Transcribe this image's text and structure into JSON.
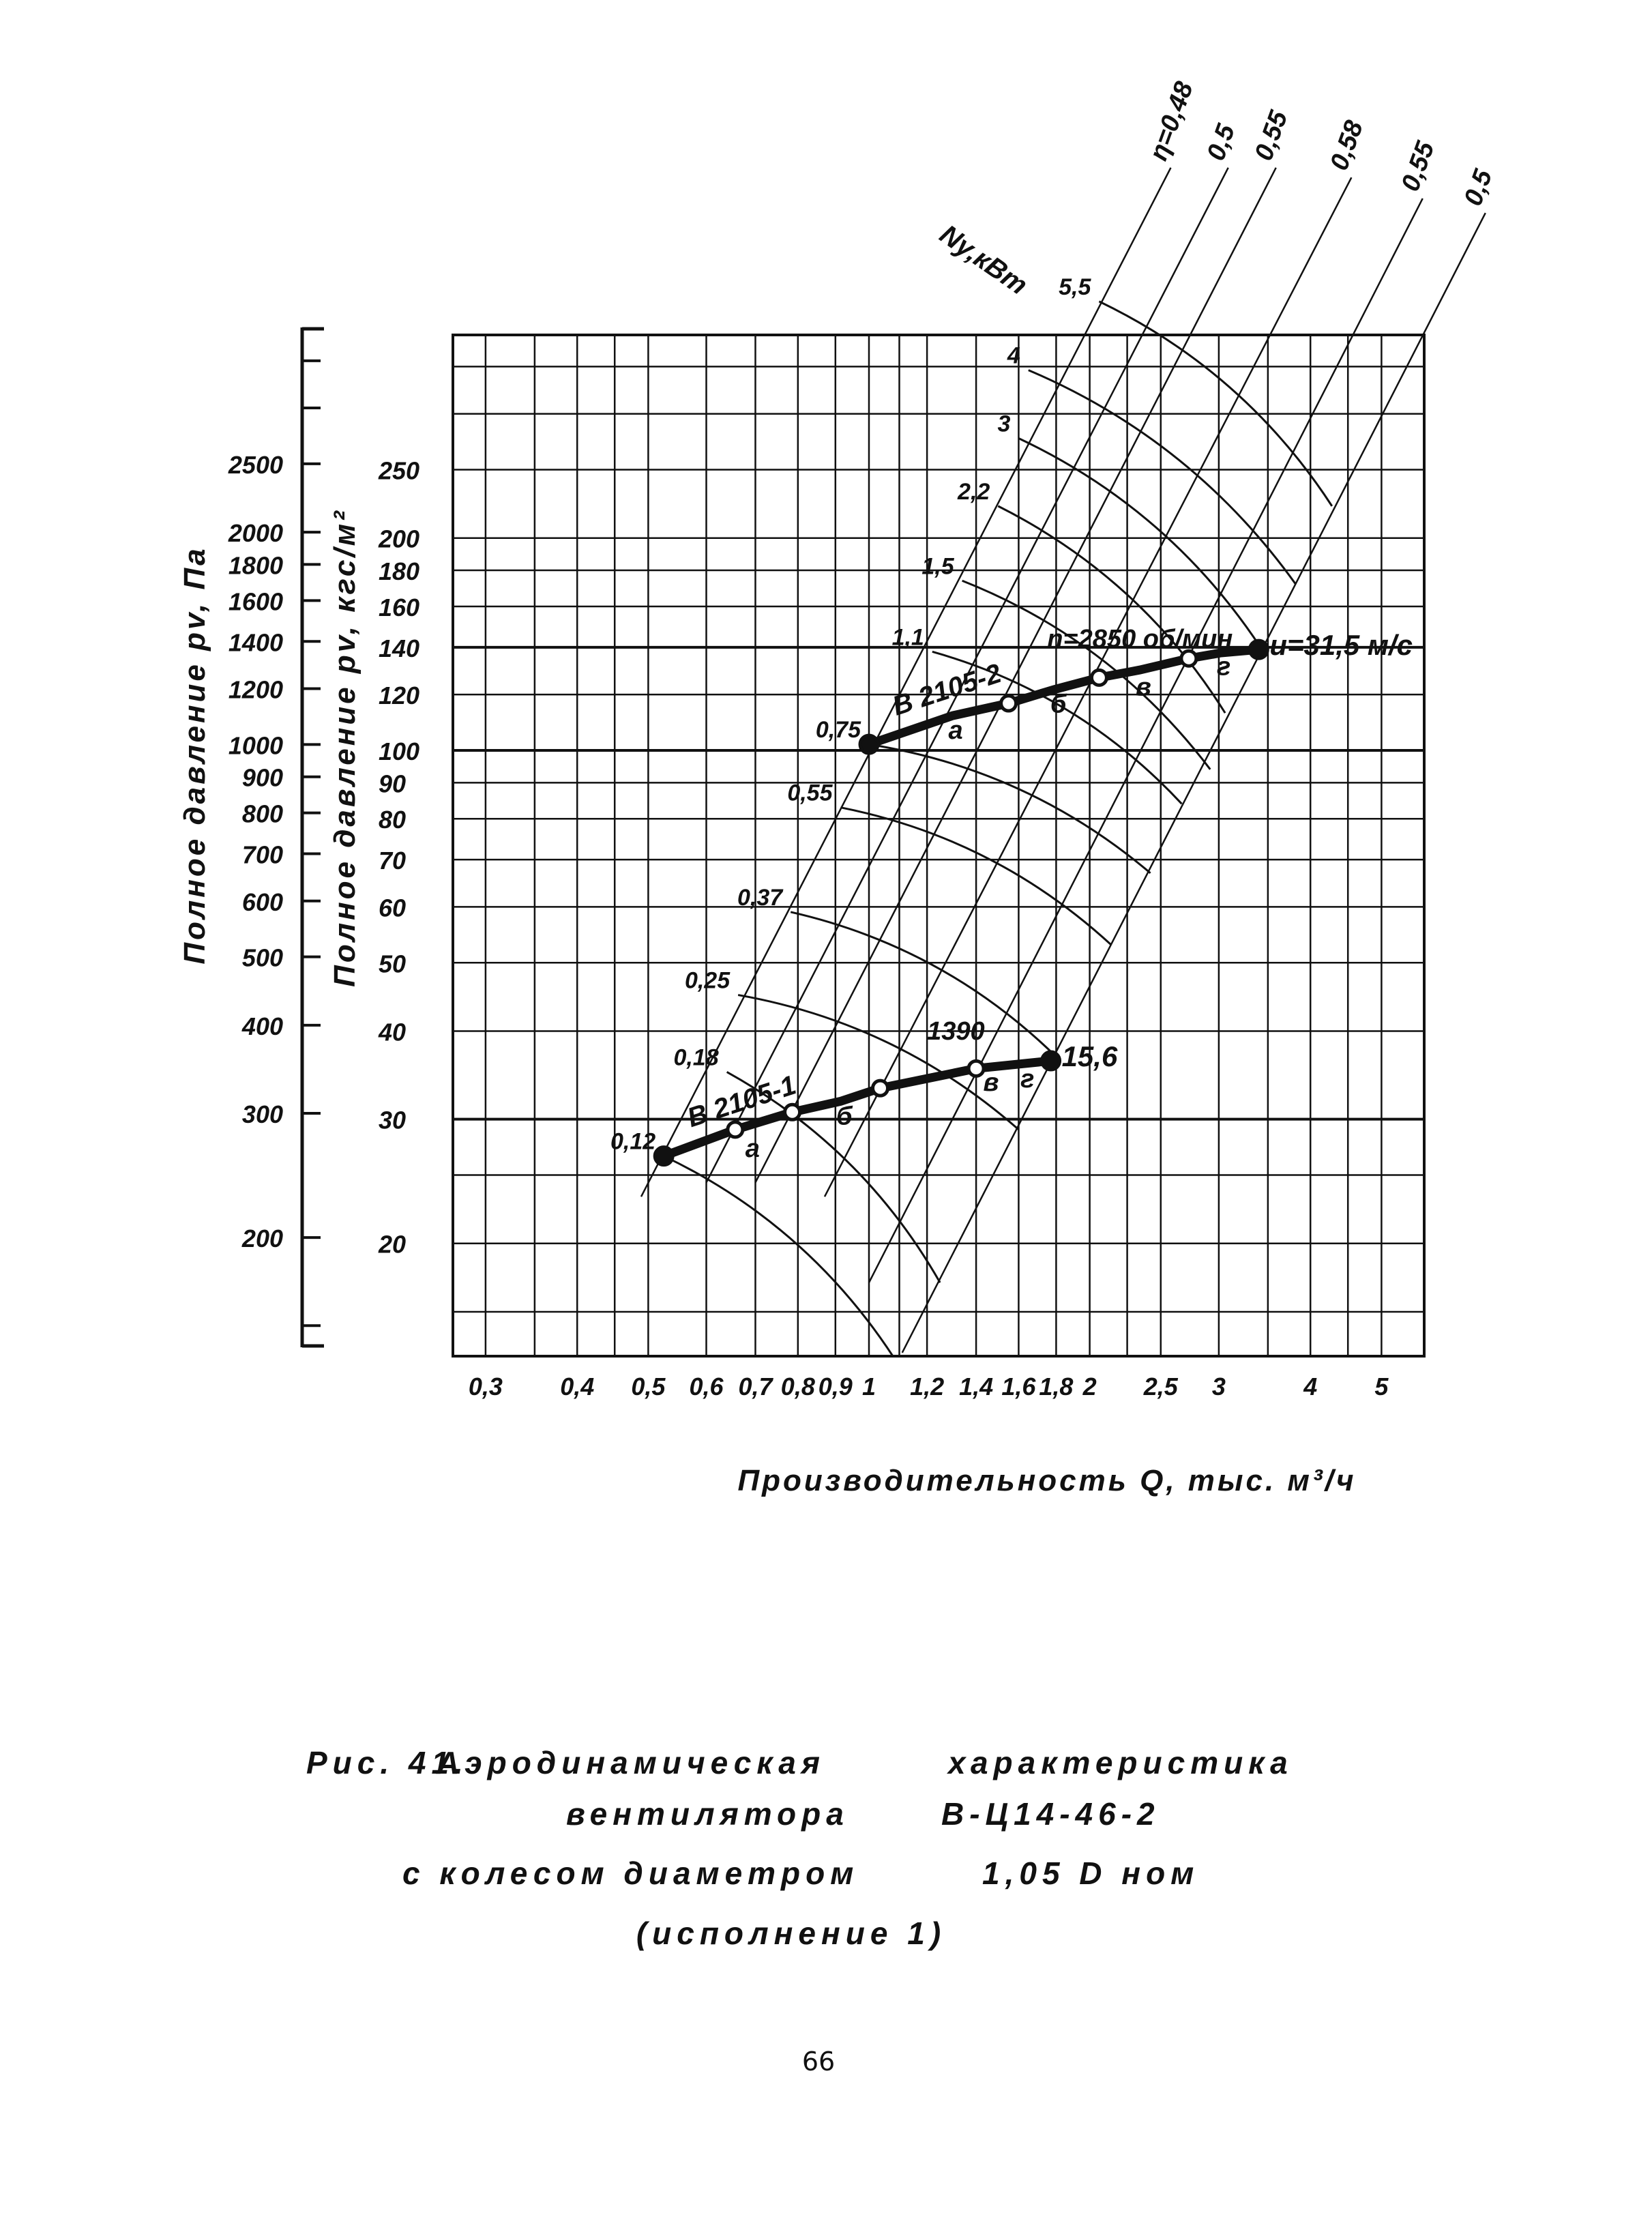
{
  "colors": {
    "ink": "#111111",
    "paper": "#ffffff"
  },
  "chart_data": {
    "type": "line",
    "x_scale": "log",
    "y_scale": "log",
    "xlim": [
      0.27,
      5.7
    ],
    "ylim": [
      13.8,
      390
    ],
    "grid": true,
    "xlabel": "Производительность Q, тыс. м³/ч",
    "ylabel": "Полное давление pv, кгс/м²",
    "ylabel_secondary": "Полное давление pv, Па",
    "x_ticks": [
      "0,3",
      "0,4",
      "0,5",
      "0,6",
      "0,7",
      "0,8",
      "0,9",
      "1",
      "1,2",
      "1,4",
      "1,6",
      "1,8",
      "2",
      "2,5",
      "3",
      "4",
      "5"
    ],
    "x_tick_values": [
      0.3,
      0.4,
      0.5,
      0.6,
      0.7,
      0.8,
      0.9,
      1,
      1.2,
      1.4,
      1.6,
      1.8,
      2,
      2.5,
      3,
      4,
      5
    ],
    "x_grid": [
      0.3,
      0.35,
      0.4,
      0.45,
      0.5,
      0.6,
      0.7,
      0.8,
      0.9,
      1,
      1.1,
      1.2,
      1.4,
      1.6,
      1.8,
      2,
      2.25,
      2.5,
      3,
      3.5,
      4,
      4.5,
      5
    ],
    "y_ticks": [
      "20",
      "30",
      "40",
      "50",
      "60",
      "70",
      "80",
      "90",
      "100",
      "120",
      "140",
      "160",
      "180",
      "200",
      "250"
    ],
    "y_tick_values": [
      20,
      30,
      40,
      50,
      60,
      70,
      80,
      90,
      100,
      120,
      140,
      160,
      180,
      200,
      250
    ],
    "y_grid": [
      16,
      20,
      25,
      30,
      40,
      50,
      60,
      70,
      80,
      90,
      100,
      120,
      140,
      160,
      180,
      200,
      250,
      300,
      350
    ],
    "y2_ticks": [
      "200",
      "300",
      "400",
      "500",
      "600",
      "700",
      "800",
      "900",
      "1000",
      "1200",
      "1400",
      "1600",
      "1800",
      "2000",
      "2500"
    ],
    "y2_tick_values": [
      200,
      300,
      400,
      500,
      600,
      700,
      800,
      900,
      1000,
      1200,
      1400,
      1600,
      1800,
      2000,
      2500
    ],
    "y2_minor": [
      150,
      3000,
      3500
    ],
    "power_axis_label": "Ny,кВт",
    "series": [
      {
        "name": "n=2850 об/мин",
        "label": "В 2105-2",
        "end_label": "u=31,5 м/с",
        "points": [
          [
            1.0,
            102
          ],
          [
            1.3,
            112
          ],
          [
            1.55,
            116.6
          ],
          [
            1.79,
            122
          ],
          [
            2.06,
            126.8
          ],
          [
            2.34,
            130
          ],
          [
            2.73,
            135
          ],
          [
            3.02,
            137.5
          ],
          [
            3.4,
            139
          ]
        ],
        "markers": [
          {
            "q": 1.0,
            "p": 102,
            "type": "filled"
          },
          {
            "q": 1.55,
            "p": 116.6,
            "type": "open"
          },
          {
            "q": 2.06,
            "p": 126.8,
            "type": "open"
          },
          {
            "q": 2.73,
            "p": 135,
            "type": "open"
          },
          {
            "q": 3.4,
            "p": 139,
            "type": "filled"
          }
        ],
        "letters": [
          {
            "t": "а",
            "q": 1.3,
            "p": 112
          },
          {
            "t": "б",
            "q": 1.79,
            "p": 122
          },
          {
            "t": "в",
            "q": 2.34,
            "p": 129
          },
          {
            "t": "г",
            "q": 3.02,
            "p": 138
          }
        ]
      },
      {
        "name": "1390",
        "label": "В 2105-1",
        "end_label": "15,6",
        "points": [
          [
            0.525,
            26.6
          ],
          [
            0.657,
            29
          ],
          [
            0.786,
            30.7
          ],
          [
            0.914,
            31.8
          ],
          [
            1.036,
            33.2
          ],
          [
            1.4,
            35.4
          ],
          [
            1.77,
            36.3
          ]
        ],
        "markers": [
          {
            "q": 0.525,
            "p": 26.6,
            "type": "filled"
          },
          {
            "q": 0.657,
            "p": 29,
            "type": "open"
          },
          {
            "q": 0.786,
            "p": 30.7,
            "type": "open"
          },
          {
            "q": 1.036,
            "p": 33.2,
            "type": "open"
          },
          {
            "q": 1.4,
            "p": 35.4,
            "type": "open"
          },
          {
            "q": 1.77,
            "p": 36.3,
            "type": "filled"
          }
        ],
        "letters": [
          {
            "t": "а",
            "q": 0.687,
            "p": 28.6
          },
          {
            "t": "б",
            "q": 0.914,
            "p": 31.8
          },
          {
            "t": "в",
            "q": 1.45,
            "p": 35.5
          },
          {
            "t": "г",
            "q": 1.63,
            "p": 35.9
          }
        ]
      }
    ],
    "efficiency_lines": [
      {
        "label": "η=0,48",
        "from": [
          0.489,
          23.3
        ],
        "to": [
          2.58,
          670
        ]
      },
      {
        "label": "0,5",
        "from": [
          0.6,
          24.4
        ],
        "to": [
          3.09,
          670
        ]
      },
      {
        "label": "0,55",
        "from": [
          0.7,
          24.4
        ],
        "to": [
          3.59,
          670
        ]
      },
      {
        "label": "0,58",
        "from": [
          0.87,
          23.3
        ],
        "to": [
          4.55,
          649
        ]
      },
      {
        "label": "0,55",
        "from": [
          1.0,
          17.6
        ],
        "to": [
          5.69,
          606
        ]
      },
      {
        "label": "0,5",
        "from": [
          1.11,
          14
        ],
        "to": [
          6.93,
          578
        ]
      }
    ],
    "power_curves": [
      {
        "label": "5,5",
        "from": [
          2.06,
          433
        ],
        "to": [
          4.28,
          222
        ]
      },
      {
        "label": "4",
        "from": [
          1.65,
          346
        ],
        "to": [
          3.82,
          172
        ]
      },
      {
        "label": "3",
        "from": [
          1.6,
          277
        ],
        "to": [
          3.42,
          140
        ]
      },
      {
        "label": "2,2",
        "from": [
          1.5,
          222
        ],
        "to": [
          3.06,
          113
        ]
      },
      {
        "label": "1,5",
        "from": [
          1.34,
          174
        ],
        "to": [
          2.92,
          94
        ]
      },
      {
        "label": "1,1",
        "from": [
          1.22,
          138
        ],
        "to": [
          2.67,
          84
        ]
      },
      {
        "label": "0,75",
        "from": [
          1.0,
          102
        ],
        "to": [
          2.42,
          67
        ]
      },
      {
        "label": "0,55",
        "from": [
          0.915,
          83
        ],
        "to": [
          2.14,
          53
        ]
      },
      {
        "label": "0,37",
        "from": [
          0.782,
          59
        ],
        "to": [
          1.79,
          37
        ]
      },
      {
        "label": "0,25",
        "from": [
          0.663,
          45
        ],
        "to": [
          1.6,
          29
        ]
      },
      {
        "label": "0,18",
        "from": [
          0.64,
          35
        ],
        "to": [
          1.25,
          17.6
        ]
      },
      {
        "label": "0,12",
        "from": [
          0.525,
          26.6
        ],
        "to": [
          1.08,
          13.8
        ]
      }
    ]
  },
  "caption": {
    "fig": "Рис. 41.",
    "line1a": "Аэродинамическая",
    "line1b": "характеристика",
    "line2a": "вентилятора",
    "line2b": "В-Ц14-46-2",
    "line3a": "с колесом диаметром",
    "line3b": "1,05 D ном",
    "line4": "(исполнение 1)"
  },
  "page_number": "66"
}
